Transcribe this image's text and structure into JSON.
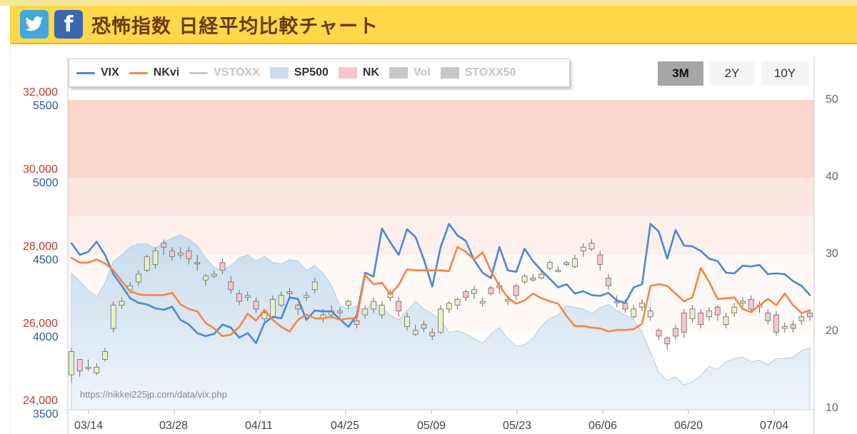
{
  "header": {
    "twitter_icon": "twitter-bird-icon",
    "facebook_icon": "facebook-f-icon",
    "facebook_glyph": "f",
    "title": "恐怖指数 日経平均比較チャート"
  },
  "legend": {
    "items": [
      {
        "label": "VIX",
        "kind": "line",
        "color": "#4a88d8",
        "active": true
      },
      {
        "label": "NKvi",
        "kind": "line",
        "color": "#f58646",
        "active": true
      },
      {
        "label": "VSTOXX",
        "kind": "line",
        "color": "#c8c8c8",
        "active": false
      },
      {
        "label": "SP500",
        "kind": "area",
        "color": "#c8dced",
        "active": true
      },
      {
        "label": "NK",
        "kind": "area",
        "color": "#f5c6cd",
        "active": true
      },
      {
        "label": "Vol",
        "kind": "area",
        "color": "#c8c8c8",
        "active": false
      },
      {
        "label": "STOXX50",
        "kind": "area",
        "color": "#c8c8c8",
        "active": false
      }
    ]
  },
  "range_buttons": [
    {
      "label": "3M",
      "active": true
    },
    {
      "label": "2Y",
      "active": false
    },
    {
      "label": "10Y",
      "active": false
    }
  ],
  "credit": "https://nikkei225jp.com/data/vix.php",
  "chart_data": {
    "type": "line",
    "title": "",
    "x_labels": [
      "03/14",
      "03/28",
      "04/11",
      "04/25",
      "05/09",
      "05/23",
      "06/06",
      "06/20",
      "07/04"
    ],
    "axes": {
      "nk": {
        "ticks": [
          "32,000",
          "30,000",
          "28,000",
          "26,000",
          "24,000"
        ],
        "range": [
          24000,
          32000
        ]
      },
      "sp": {
        "ticks": [
          "5500",
          "5000",
          "4500",
          "4000",
          "3500"
        ],
        "range": [
          3500,
          5500
        ]
      },
      "vix": {
        "ticks": [
          "50",
          "40",
          "30",
          "20",
          "10"
        ],
        "range": [
          10,
          50
        ]
      }
    },
    "fear_bands": [
      {
        "from": 40,
        "to": 50,
        "color": "#f9d5cc"
      },
      {
        "from": 35,
        "to": 40,
        "color": "#fbe5e0"
      },
      {
        "from": 30,
        "to": 35,
        "color": "#fdf0ec"
      },
      {
        "from": 20,
        "to": 30,
        "color": "#fef8f6"
      }
    ],
    "series": [
      {
        "name": "VIX",
        "axis": "vix",
        "color": "#4a88d8",
        "values": [
          31.5,
          30.0,
          30.4,
          31.7,
          30.0,
          27.5,
          26.0,
          24.4,
          23.8,
          23.6,
          23.1,
          22.9,
          23.3,
          21.6,
          21.0,
          19.9,
          19.5,
          19.8,
          21.0,
          20.6,
          19.3,
          19.9,
          18.6,
          21.2,
          22.0,
          21.8,
          24.5,
          24.3,
          21.6,
          22.8,
          22.7,
          22.7,
          21.7,
          20.7,
          22.2,
          27.7,
          27.2,
          33.4,
          31.6,
          30.0,
          33.3,
          32.3,
          29.4,
          25.9,
          31.0,
          34.0,
          32.5,
          31.8,
          29.3,
          27.7,
          27.0,
          31.0,
          28.0,
          27.8,
          30.8,
          29.2,
          28.0,
          26.9,
          25.8,
          26.2,
          25.0,
          25.3,
          24.8,
          24.7,
          25.1,
          24.1,
          23.8,
          25.8,
          26.2,
          34.0,
          33.0,
          29.5,
          33.2,
          31.2,
          31.1,
          30.5,
          29.5,
          29.2,
          27.7,
          27.6,
          28.6,
          28.5,
          28.7,
          27.5,
          27.6,
          27.5,
          26.6,
          26.0,
          24.8
        ]
      },
      {
        "name": "NKvi",
        "axis": "vix",
        "color": "#f58646",
        "values": [
          29.6,
          29.0,
          29.0,
          29.4,
          28.9,
          28.0,
          26.6,
          25.3,
          24.9,
          24.8,
          24.8,
          24.8,
          25.1,
          23.6,
          23.0,
          22.7,
          21.2,
          20.5,
          19.5,
          19.7,
          20.7,
          22.4,
          21.5,
          22.9,
          21.6,
          20.7,
          20.1,
          21.6,
          22.3,
          21.8,
          21.8,
          22.0,
          21.6,
          21.8,
          21.8,
          27.4,
          26.2,
          26.4,
          24.9,
          26.1,
          28.1,
          28.0,
          28.0,
          28.0,
          28.0,
          27.9,
          31.0,
          30.4,
          29.4,
          30.3,
          27.9,
          26.0,
          24.5,
          23.7,
          24.1,
          25.0,
          24.4,
          24.0,
          23.7,
          22.1,
          20.8,
          20.8,
          20.6,
          20.5,
          20.1,
          20.3,
          20.3,
          20.4,
          21.1,
          26.0,
          26.2,
          26.0,
          25.0,
          24.0,
          24.5,
          28.3,
          26.5,
          24.3,
          24.4,
          24.5,
          23.0,
          22.6,
          23.5,
          24.3,
          23.5,
          25.0,
          23.5,
          22.5,
          22.8
        ]
      },
      {
        "name": "SP500",
        "axis": "sp",
        "color": "#c8dced",
        "values": [
          4380,
          4330,
          4270,
          4230,
          4320,
          4460,
          4500,
          4550,
          4570,
          4570,
          4540,
          4580,
          4610,
          4630,
          4600,
          4560,
          4480,
          4420,
          4400,
          4430,
          4480,
          4500,
          4460,
          4490,
          4450,
          4440,
          4470,
          4460,
          4400,
          4430,
          4380,
          4300,
          4170,
          4150,
          4170,
          4140,
          4200,
          4160,
          4110,
          4080,
          4140,
          4200,
          4150,
          4120,
          4080,
          4000,
          4010,
          3990,
          3960,
          3930,
          3990,
          4030,
          3960,
          3910,
          3920,
          3960,
          4040,
          4090,
          4110,
          4170,
          4160,
          4150,
          4120,
          4160,
          4180,
          4140,
          4110,
          4080,
          4000,
          3870,
          3740,
          3690,
          3710,
          3660,
          3680,
          3720,
          3780,
          3760,
          3810,
          3830,
          3840,
          3810,
          3820,
          3790,
          3830,
          3830,
          3840,
          3880,
          3900
        ]
      }
    ],
    "candles": {
      "name": "NK",
      "axis": "nk",
      "up_color": "#e8f0c8",
      "down_color": "#f5c6cd",
      "ohlc": [
        [
          24900,
          25500,
          24900,
          25600,
          24700,
          "up"
        ],
        [
          25300,
          25000,
          25400,
          25100,
          24850,
          "dn"
        ],
        [
          25100,
          25100,
          25200,
          25300,
          25000,
          "up"
        ],
        [
          24950,
          25100,
          25000,
          25200,
          24900,
          "up"
        ],
        [
          25300,
          25500,
          25350,
          25600,
          25250,
          "up"
        ],
        [
          26100,
          26700,
          26200,
          26800,
          26000,
          "up"
        ],
        [
          26700,
          26800,
          26750,
          26900,
          26600,
          "up"
        ],
        [
          27200,
          27100,
          27150,
          27300,
          27000,
          "up"
        ],
        [
          27500,
          27300,
          27400,
          27600,
          27200,
          "up"
        ],
        [
          27600,
          27950,
          27650,
          28000,
          27550,
          "up"
        ],
        [
          27750,
          28100,
          27900,
          28200,
          27650,
          "up"
        ],
        [
          28300,
          28200,
          28100,
          28400,
          28000,
          "dn"
        ],
        [
          28100,
          27950,
          27900,
          28200,
          27850,
          "dn"
        ],
        [
          28000,
          28050,
          28100,
          28200,
          27900,
          "up"
        ],
        [
          28100,
          27900,
          27850,
          28200,
          27750,
          "dn"
        ],
        [
          27800,
          27800,
          27700,
          28000,
          27600,
          "dn"
        ],
        [
          27350,
          27450,
          27400,
          27500,
          27200,
          "up"
        ],
        [
          27450,
          27500,
          27450,
          27600,
          27400,
          "up"
        ],
        [
          27800,
          27600,
          27600,
          27900,
          27500,
          "dn"
        ],
        [
          27300,
          27100,
          27200,
          27450,
          27000,
          "dn"
        ],
        [
          27000,
          26800,
          26900,
          27100,
          26700,
          "dn"
        ],
        [
          26950,
          26900,
          27000,
          27050,
          26800,
          "up"
        ],
        [
          26800,
          26600,
          26650,
          26900,
          26500,
          "dn"
        ],
        [
          26350,
          26500,
          26400,
          26600,
          26200,
          "up"
        ],
        [
          26400,
          26850,
          26400,
          26950,
          26300,
          "up"
        ],
        [
          26700,
          26950,
          26750,
          27050,
          26650,
          "up"
        ],
        [
          27000,
          27050,
          26950,
          27150,
          26850,
          "dn"
        ],
        [
          26700,
          26600,
          26650,
          26750,
          26450,
          "dn"
        ],
        [
          26950,
          26900,
          26950,
          27050,
          26800,
          "up"
        ],
        [
          27100,
          27300,
          27150,
          27400,
          27000,
          "up"
        ],
        [
          26350,
          26450,
          26400,
          26600,
          26250,
          "up"
        ],
        [
          26450,
          26550,
          26500,
          26700,
          26350,
          "up"
        ],
        [
          26550,
          26500,
          26550,
          26650,
          26400,
          "dn"
        ],
        [
          26700,
          26800,
          26650,
          26850,
          26600,
          "up"
        ],
        [
          26300,
          26200,
          26250,
          26400,
          26100,
          "dn"
        ],
        [
          26450,
          26600,
          26500,
          26700,
          26350,
          "up"
        ],
        [
          26600,
          26800,
          26650,
          26900,
          26500,
          "up"
        ],
        [
          26450,
          26700,
          26500,
          26800,
          26350,
          "up"
        ],
        [
          26900,
          27000,
          27050,
          27100,
          26800,
          "up"
        ],
        [
          26800,
          26550,
          26600,
          26900,
          26400,
          "dn"
        ],
        [
          26150,
          26400,
          26200,
          26500,
          26050,
          "up"
        ],
        [
          25950,
          26050,
          26050,
          26200,
          25900,
          "up"
        ],
        [
          26200,
          26100,
          26150,
          26300,
          26000,
          "dn"
        ],
        [
          26000,
          25900,
          25850,
          26100,
          25800,
          "dn"
        ],
        [
          26000,
          26600,
          26050,
          26700,
          25950,
          "up"
        ],
        [
          26600,
          26750,
          26550,
          26800,
          26500,
          "up"
        ],
        [
          26700,
          26850,
          26750,
          26900,
          26600,
          "up"
        ],
        [
          27050,
          26900,
          26900,
          27100,
          26800,
          "dn"
        ],
        [
          27000,
          27100,
          27000,
          27200,
          26850,
          "up"
        ],
        [
          26750,
          26800,
          26800,
          26900,
          26650,
          "up"
        ],
        [
          27150,
          27000,
          27050,
          27200,
          26950,
          "dn"
        ],
        [
          27150,
          27200,
          27150,
          27300,
          27000,
          "up"
        ],
        [
          26800,
          26850,
          26850,
          26950,
          26700,
          "up"
        ],
        [
          27200,
          26950,
          27000,
          27250,
          26850,
          "dn"
        ],
        [
          27300,
          27450,
          27350,
          27500,
          27250,
          "up"
        ],
        [
          27400,
          27350,
          27400,
          27500,
          27300,
          "dn"
        ],
        [
          27400,
          27500,
          27450,
          27600,
          27350,
          "up"
        ],
        [
          27650,
          27800,
          27700,
          27850,
          27600,
          "up"
        ],
        [
          27600,
          27600,
          27650,
          27700,
          27550,
          "up"
        ],
        [
          27800,
          27750,
          27750,
          27850,
          27700,
          "dn"
        ],
        [
          27700,
          27900,
          27750,
          28000,
          27650,
          "up"
        ],
        [
          28100,
          28200,
          28050,
          28300,
          27950,
          "up"
        ],
        [
          28150,
          28300,
          28200,
          28400,
          28100,
          "up"
        ],
        [
          28000,
          27750,
          27800,
          28100,
          27600,
          "dn"
        ],
        [
          27400,
          27200,
          27150,
          27500,
          27100,
          "dn"
        ],
        [
          26800,
          26800,
          26750,
          26950,
          26650,
          "dn"
        ],
        [
          26750,
          26600,
          26650,
          26850,
          26500,
          "dn"
        ],
        [
          26400,
          26600,
          26450,
          26700,
          26350,
          "up"
        ],
        [
          26650,
          26750,
          26700,
          26850,
          26550,
          "up"
        ],
        [
          26400,
          26550,
          26450,
          26650,
          26300,
          "up"
        ],
        [
          26050,
          25900,
          26000,
          26100,
          25800,
          "dn"
        ],
        [
          25850,
          25700,
          25750,
          25900,
          25550,
          "dn"
        ],
        [
          26100,
          25900,
          25950,
          26200,
          25800,
          "dn"
        ],
        [
          26500,
          26000,
          26050,
          26600,
          25850,
          "dn"
        ],
        [
          26350,
          26600,
          26400,
          26700,
          26250,
          "up"
        ],
        [
          26500,
          26200,
          26250,
          26600,
          26100,
          "dn"
        ],
        [
          26400,
          26550,
          26450,
          26650,
          26300,
          "up"
        ],
        [
          26650,
          26450,
          26400,
          26700,
          26300,
          "dn"
        ],
        [
          26200,
          26400,
          26250,
          26500,
          26100,
          "up"
        ],
        [
          26500,
          26650,
          26550,
          26750,
          26400,
          "up"
        ],
        [
          26750,
          26800,
          26700,
          26900,
          26650,
          "up"
        ],
        [
          26850,
          26600,
          26650,
          26950,
          26500,
          "dn"
        ],
        [
          26650,
          26700,
          26600,
          26800,
          26500,
          "up"
        ],
        [
          26500,
          26300,
          26350,
          26600,
          26200,
          "dn"
        ],
        [
          26450,
          26000,
          26050,
          26550,
          25900,
          "dn"
        ],
        [
          26100,
          26150,
          26100,
          26250,
          26000,
          "up"
        ],
        [
          26200,
          26100,
          26150,
          26300,
          26000,
          "dn"
        ],
        [
          26300,
          26400,
          26350,
          26500,
          26200,
          "up"
        ],
        [
          26500,
          26400,
          26450,
          26600,
          26300,
          "dn"
        ]
      ]
    }
  }
}
